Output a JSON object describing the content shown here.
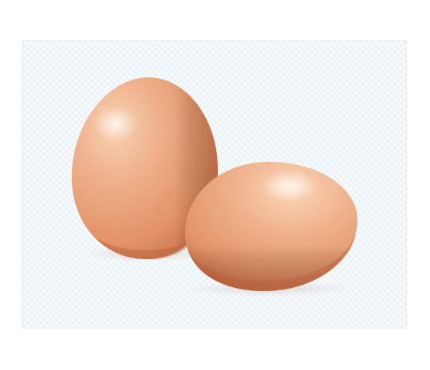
{
  "image": {
    "subject": "two-brown-eggs",
    "background": "transparency-checkerboard",
    "colors": {
      "egg_highlight": "#f8cfae",
      "egg_mid": "#eaa47c",
      "egg_shadow": "#c86a42",
      "frame_border": "#e4ebf1",
      "checker_light": "#f7fafc",
      "checker_dark": "#edf2f7"
    }
  }
}
